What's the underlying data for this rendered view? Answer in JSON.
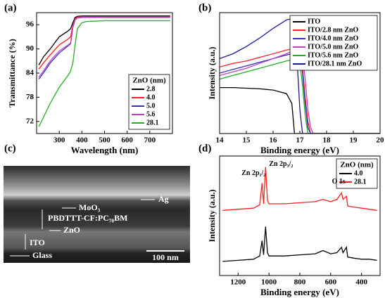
{
  "chart_data": [
    {
      "type": "line",
      "panel_label": "(a)",
      "x_label": "Wavelength (nm)",
      "y_label": "Transmittance (%)",
      "xlim": [
        200,
        800
      ],
      "xticks": [
        300,
        400,
        500,
        600,
        700
      ],
      "ylim": [
        69,
        99
      ],
      "yticks": [
        72,
        78,
        84,
        90,
        96
      ],
      "legend_title": "ZnO (nm)",
      "legend": "lower right",
      "x": [
        210,
        230,
        260,
        300,
        340,
        350,
        360,
        370,
        380,
        400,
        420,
        500,
        600,
        700,
        790
      ],
      "series": [
        {
          "name": "2.8",
          "color": "#000000",
          "values": [
            86,
            88,
            90,
            93,
            94.5,
            95,
            96.5,
            97.8,
            98.1,
            98.2,
            98.2,
            98.2,
            98.2,
            98.2,
            98.2
          ]
        },
        {
          "name": "4.0",
          "color": "#ff2020",
          "values": [
            85,
            86.5,
            88.5,
            91,
            92.5,
            93,
            95.8,
            97.5,
            97.9,
            98,
            98,
            98,
            98,
            98,
            98
          ]
        },
        {
          "name": "5.0",
          "color": "#3030c0",
          "values": [
            82.5,
            84,
            86.5,
            89,
            90.8,
            91.3,
            95.3,
            97.2,
            97.7,
            97.8,
            97.8,
            97.8,
            97.8,
            97.8,
            97.8
          ]
        },
        {
          "name": "5.6",
          "color": "#c040c0",
          "values": [
            83,
            84.5,
            87,
            89.5,
            91,
            91.5,
            95.5,
            97.3,
            97.7,
            97.8,
            97.8,
            97.8,
            97.8,
            97.8,
            97.8
          ]
        },
        {
          "name": "28.1",
          "color": "#20b020",
          "values": [
            70.7,
            73,
            76.5,
            80.5,
            83.5,
            84.5,
            86.5,
            91,
            95,
            96.5,
            96.8,
            97,
            97,
            97,
            97
          ]
        }
      ]
    },
    {
      "type": "line",
      "panel_label": "(b)",
      "x_label": "Binding energy (eV)",
      "y_label": "Intensity (a.u.)",
      "xlim": [
        14,
        20
      ],
      "xticks": [
        14,
        15,
        16,
        17,
        18,
        19,
        20
      ],
      "ylim": [
        0,
        10
      ],
      "legend": "upper right",
      "x": [
        14,
        14.5,
        15,
        15.5,
        16,
        16.5,
        16.7,
        16.8,
        16.9,
        17.0,
        17.1,
        17.2,
        17.3,
        17.4,
        17.5,
        18,
        20
      ],
      "series": [
        {
          "name": "ITO",
          "color": "#000000",
          "values": [
            3.8,
            3.8,
            3.75,
            3.7,
            3.6,
            3.3,
            2.5,
            0,
            0,
            0,
            0,
            0,
            0,
            0,
            0,
            0,
            0
          ]
        },
        {
          "name": "ITO/2.8 nm ZnO",
          "color": "#ff2020",
          "values": [
            5.5,
            5.8,
            6.0,
            6.3,
            6.6,
            6.9,
            7.0,
            7.1,
            7.2,
            7.0,
            5.5,
            3,
            1,
            0,
            0,
            0,
            0
          ]
        },
        {
          "name": "ITO/4.0 nm ZnO",
          "color": "#3030c0",
          "values": [
            5.0,
            5.3,
            5.6,
            5.9,
            6.2,
            6.5,
            6.6,
            6.7,
            6.8,
            6.6,
            5,
            2.5,
            0.5,
            0,
            0,
            0,
            0
          ]
        },
        {
          "name": "ITO/5.0 nm ZnO",
          "color": "#c040c0",
          "values": [
            4.8,
            5.1,
            5.4,
            5.8,
            6.2,
            6.6,
            6.8,
            6.9,
            7.0,
            7.0,
            6.5,
            4.5,
            2,
            0.5,
            0,
            0,
            0
          ]
        },
        {
          "name": "ITO/5.6 nm ZnO",
          "color": "#20b020",
          "values": [
            4.5,
            4.8,
            5.1,
            5.4,
            5.7,
            6.0,
            6.1,
            6.2,
            6.2,
            5.8,
            4,
            1.5,
            0,
            0,
            0,
            0,
            0
          ]
        },
        {
          "name": "ITO/28.1 nm ZnO",
          "color": "#1a1a9a",
          "values": [
            6.2,
            6.6,
            7.2,
            7.9,
            8.7,
            9.4,
            9.5,
            9.3,
            6,
            2,
            0,
            0,
            0,
            0,
            0,
            0,
            0
          ]
        }
      ]
    },
    {
      "type": "line",
      "panel_label": "(d)",
      "x_label": "Binding energy (eV)",
      "y_label": "Intensity (a.u.)",
      "xlim": [
        1320,
        280
      ],
      "xticks": [
        1200,
        1000,
        800,
        600,
        400
      ],
      "ylim": [
        0,
        11
      ],
      "legend_title": "ZnO (nm)",
      "legend": "upper right",
      "annotations": [
        "Zn 2p₁/₂",
        "Zn 2p₃/₂",
        "O 1s"
      ],
      "x": [
        1300,
        1200,
        1100,
        1060,
        1045,
        1035,
        1022,
        1010,
        1000,
        900,
        800,
        700,
        650,
        600,
        560,
        530,
        520,
        498,
        490,
        450,
        400,
        350,
        300
      ],
      "series": [
        {
          "name": "4.0",
          "color": "#000000",
          "values": [
            1.3,
            1.4,
            1.5,
            1.8,
            3.2,
            1.9,
            4.5,
            2.1,
            1.8,
            1.8,
            1.9,
            2.0,
            2.3,
            2.0,
            2.1,
            2.6,
            2.1,
            2.6,
            1.7,
            1.6,
            1.5,
            1.5,
            1.4
          ]
        },
        {
          "name": "28.1",
          "color": "#ff2020",
          "values": [
            6.0,
            6.1,
            6.2,
            6.5,
            8.5,
            6.6,
            10,
            6.9,
            6.6,
            6.6,
            6.7,
            6.8,
            7.0,
            6.8,
            7.0,
            7.6,
            7.0,
            7.3,
            6.4,
            6.3,
            6.2,
            6.1,
            6.0
          ]
        }
      ]
    }
  ],
  "image": {
    "panel_label": "(c)",
    "labels": [
      "Ag",
      "MoO₃",
      "PBDTTT-CF:PC₇₀BM",
      "ZnO",
      "ITO",
      "Glass"
    ],
    "scale_bar": "100 nm"
  }
}
